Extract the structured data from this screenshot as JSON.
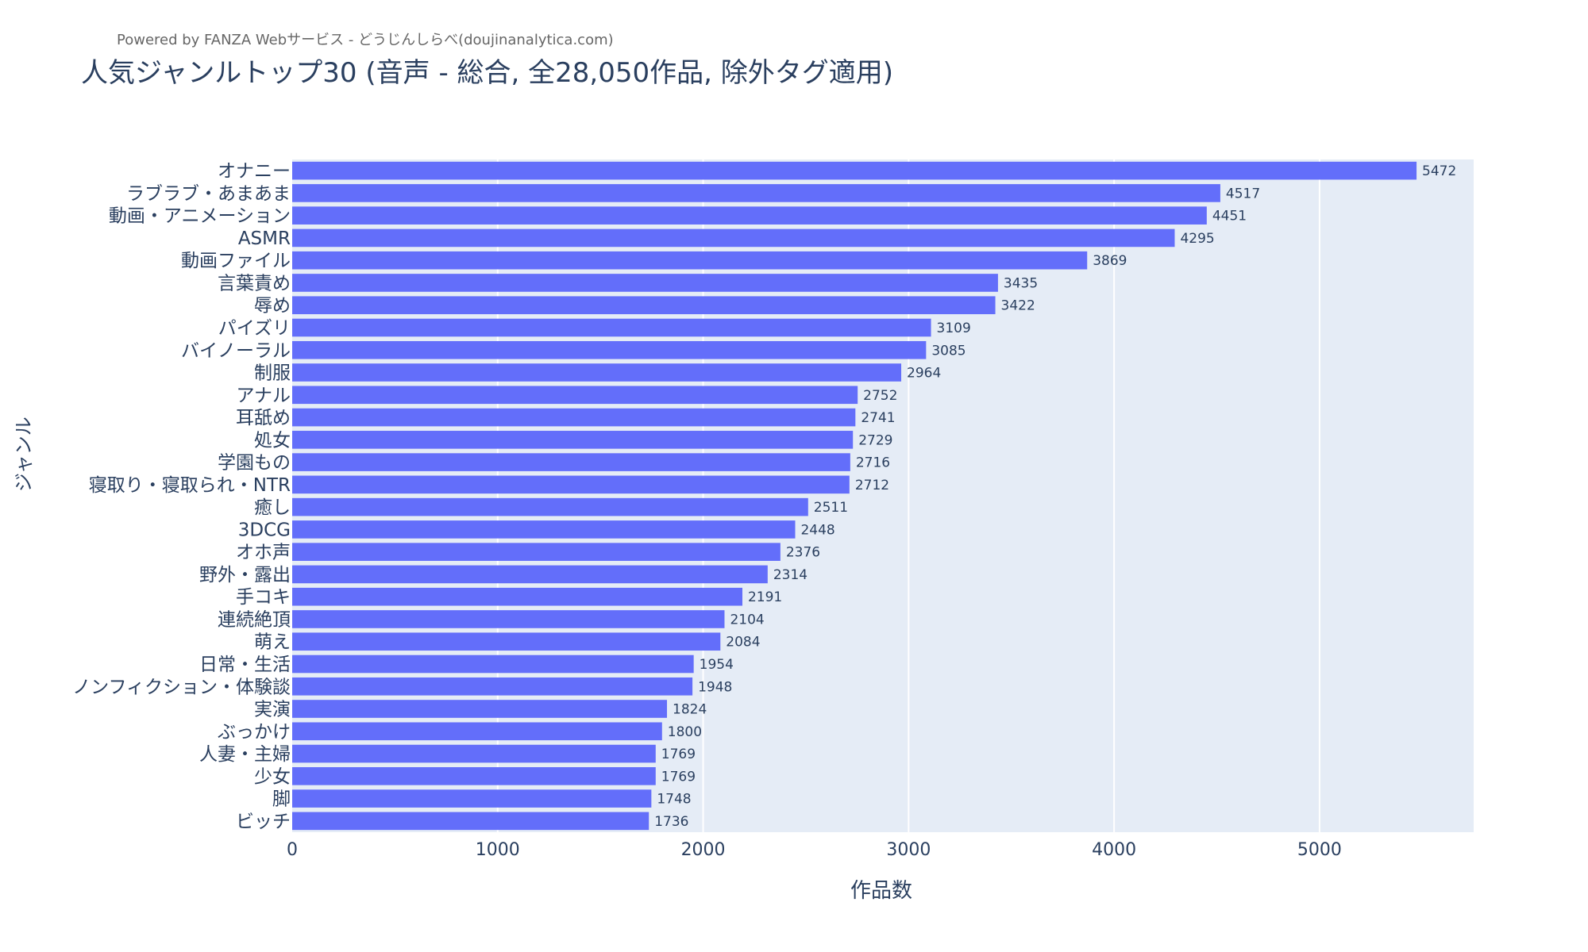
{
  "credit": "Powered by FANZA Webサービス - どうじんしらべ(doujinanalytica.com)",
  "chart_data": {
    "type": "bar",
    "orientation": "horizontal",
    "title": "人気ジャンルトップ30 (音声 - 総合, 全28,050作品, 除外タグ適用)",
    "xlabel": "作品数",
    "ylabel": "ジャンル",
    "xlim": [
      0,
      5750
    ],
    "xticks": [
      0,
      1000,
      2000,
      3000,
      4000,
      5000
    ],
    "grid": true,
    "categories": [
      "オナニー",
      "ラブラブ・あまあま",
      "動画・アニメーション",
      "ASMR",
      "動画ファイル",
      "言葉責め",
      "辱め",
      "パイズリ",
      "バイノーラル",
      "制服",
      "アナル",
      "耳舐め",
      "処女",
      "学園もの",
      "寝取り・寝取られ・NTR",
      "癒し",
      "3DCG",
      "オホ声",
      "野外・露出",
      "手コキ",
      "連続絶頂",
      "萌え",
      "日常・生活",
      "ノンフィクション・体験談",
      "実演",
      "ぶっかけ",
      "人妻・主婦",
      "少女",
      "脚",
      "ビッチ"
    ],
    "values": [
      5472,
      4517,
      4451,
      4295,
      3869,
      3435,
      3422,
      3109,
      3085,
      2964,
      2752,
      2741,
      2729,
      2716,
      2712,
      2511,
      2448,
      2376,
      2314,
      2191,
      2104,
      2084,
      1954,
      1948,
      1824,
      1800,
      1769,
      1769,
      1748,
      1736
    ],
    "colors": {
      "bar": "#636efa",
      "plot_bg": "#e5ecf6",
      "grid": "#ffffff",
      "text": "#2a3f5f"
    }
  }
}
